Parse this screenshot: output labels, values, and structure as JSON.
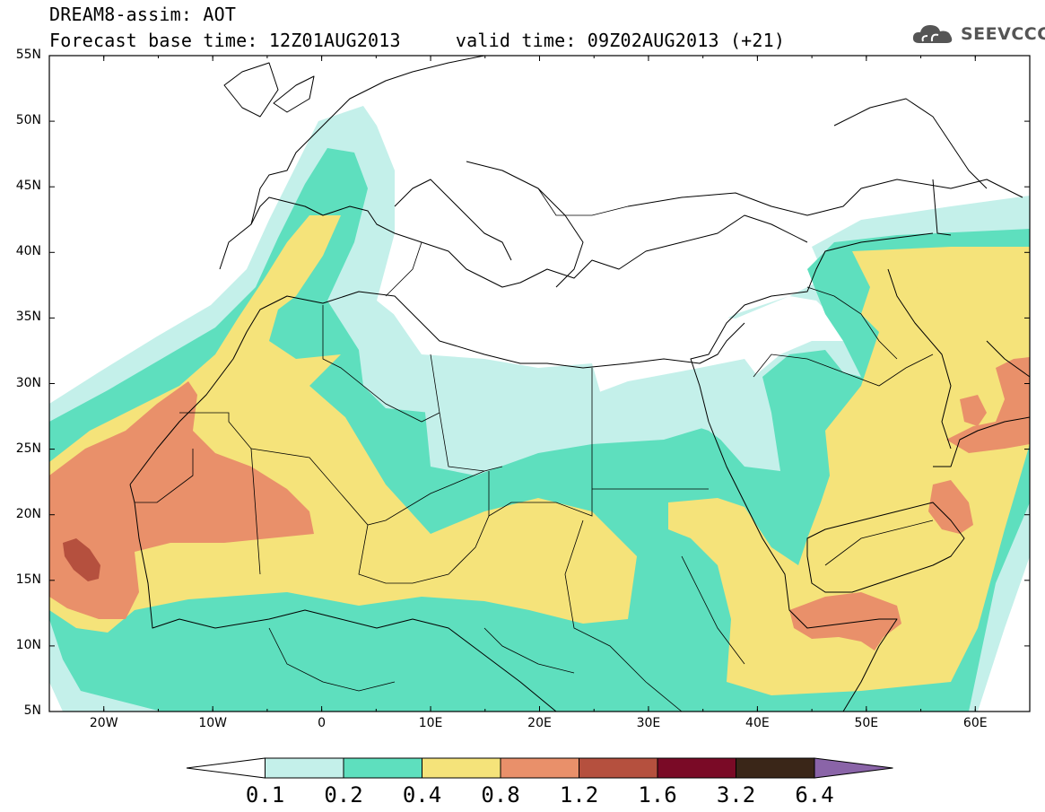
{
  "header": {
    "title": "DREAM8-assim: AOT",
    "subtitle": "Forecast base time: 12Z01AUG2013     valid time: 09Z02AUG2013 (+21)"
  },
  "logo": {
    "text": "SEEVCCC",
    "icon": "cloud-icon"
  },
  "map": {
    "variable": "AOT",
    "lat_range": [
      5,
      55
    ],
    "lon_range": [
      -25,
      65
    ],
    "lat_labels": [
      "55N",
      "50N",
      "45N",
      "40N",
      "35N",
      "30N",
      "25N",
      "20N",
      "15N",
      "10N",
      "5N"
    ],
    "lon_labels": [
      "20W",
      "10W",
      "0",
      "10E",
      "20E",
      "30E",
      "40E",
      "50E",
      "60E"
    ]
  },
  "legend": {
    "levels": [
      "0.1",
      "0.2",
      "0.4",
      "0.8",
      "1.2",
      "1.6",
      "3.2",
      "6.4"
    ],
    "colors": [
      "#ffffff",
      "#c4f0ea",
      "#5edfbe",
      "#f5e37a",
      "#e9906a",
      "#b5503e",
      "#7a0a26",
      "#3a2618",
      "#8a64a8"
    ]
  },
  "colors": {
    "c1": "#c4f0ea",
    "c2": "#5edfbe",
    "c3": "#f5e37a",
    "c4": "#e9906a",
    "c5": "#b5503e"
  }
}
